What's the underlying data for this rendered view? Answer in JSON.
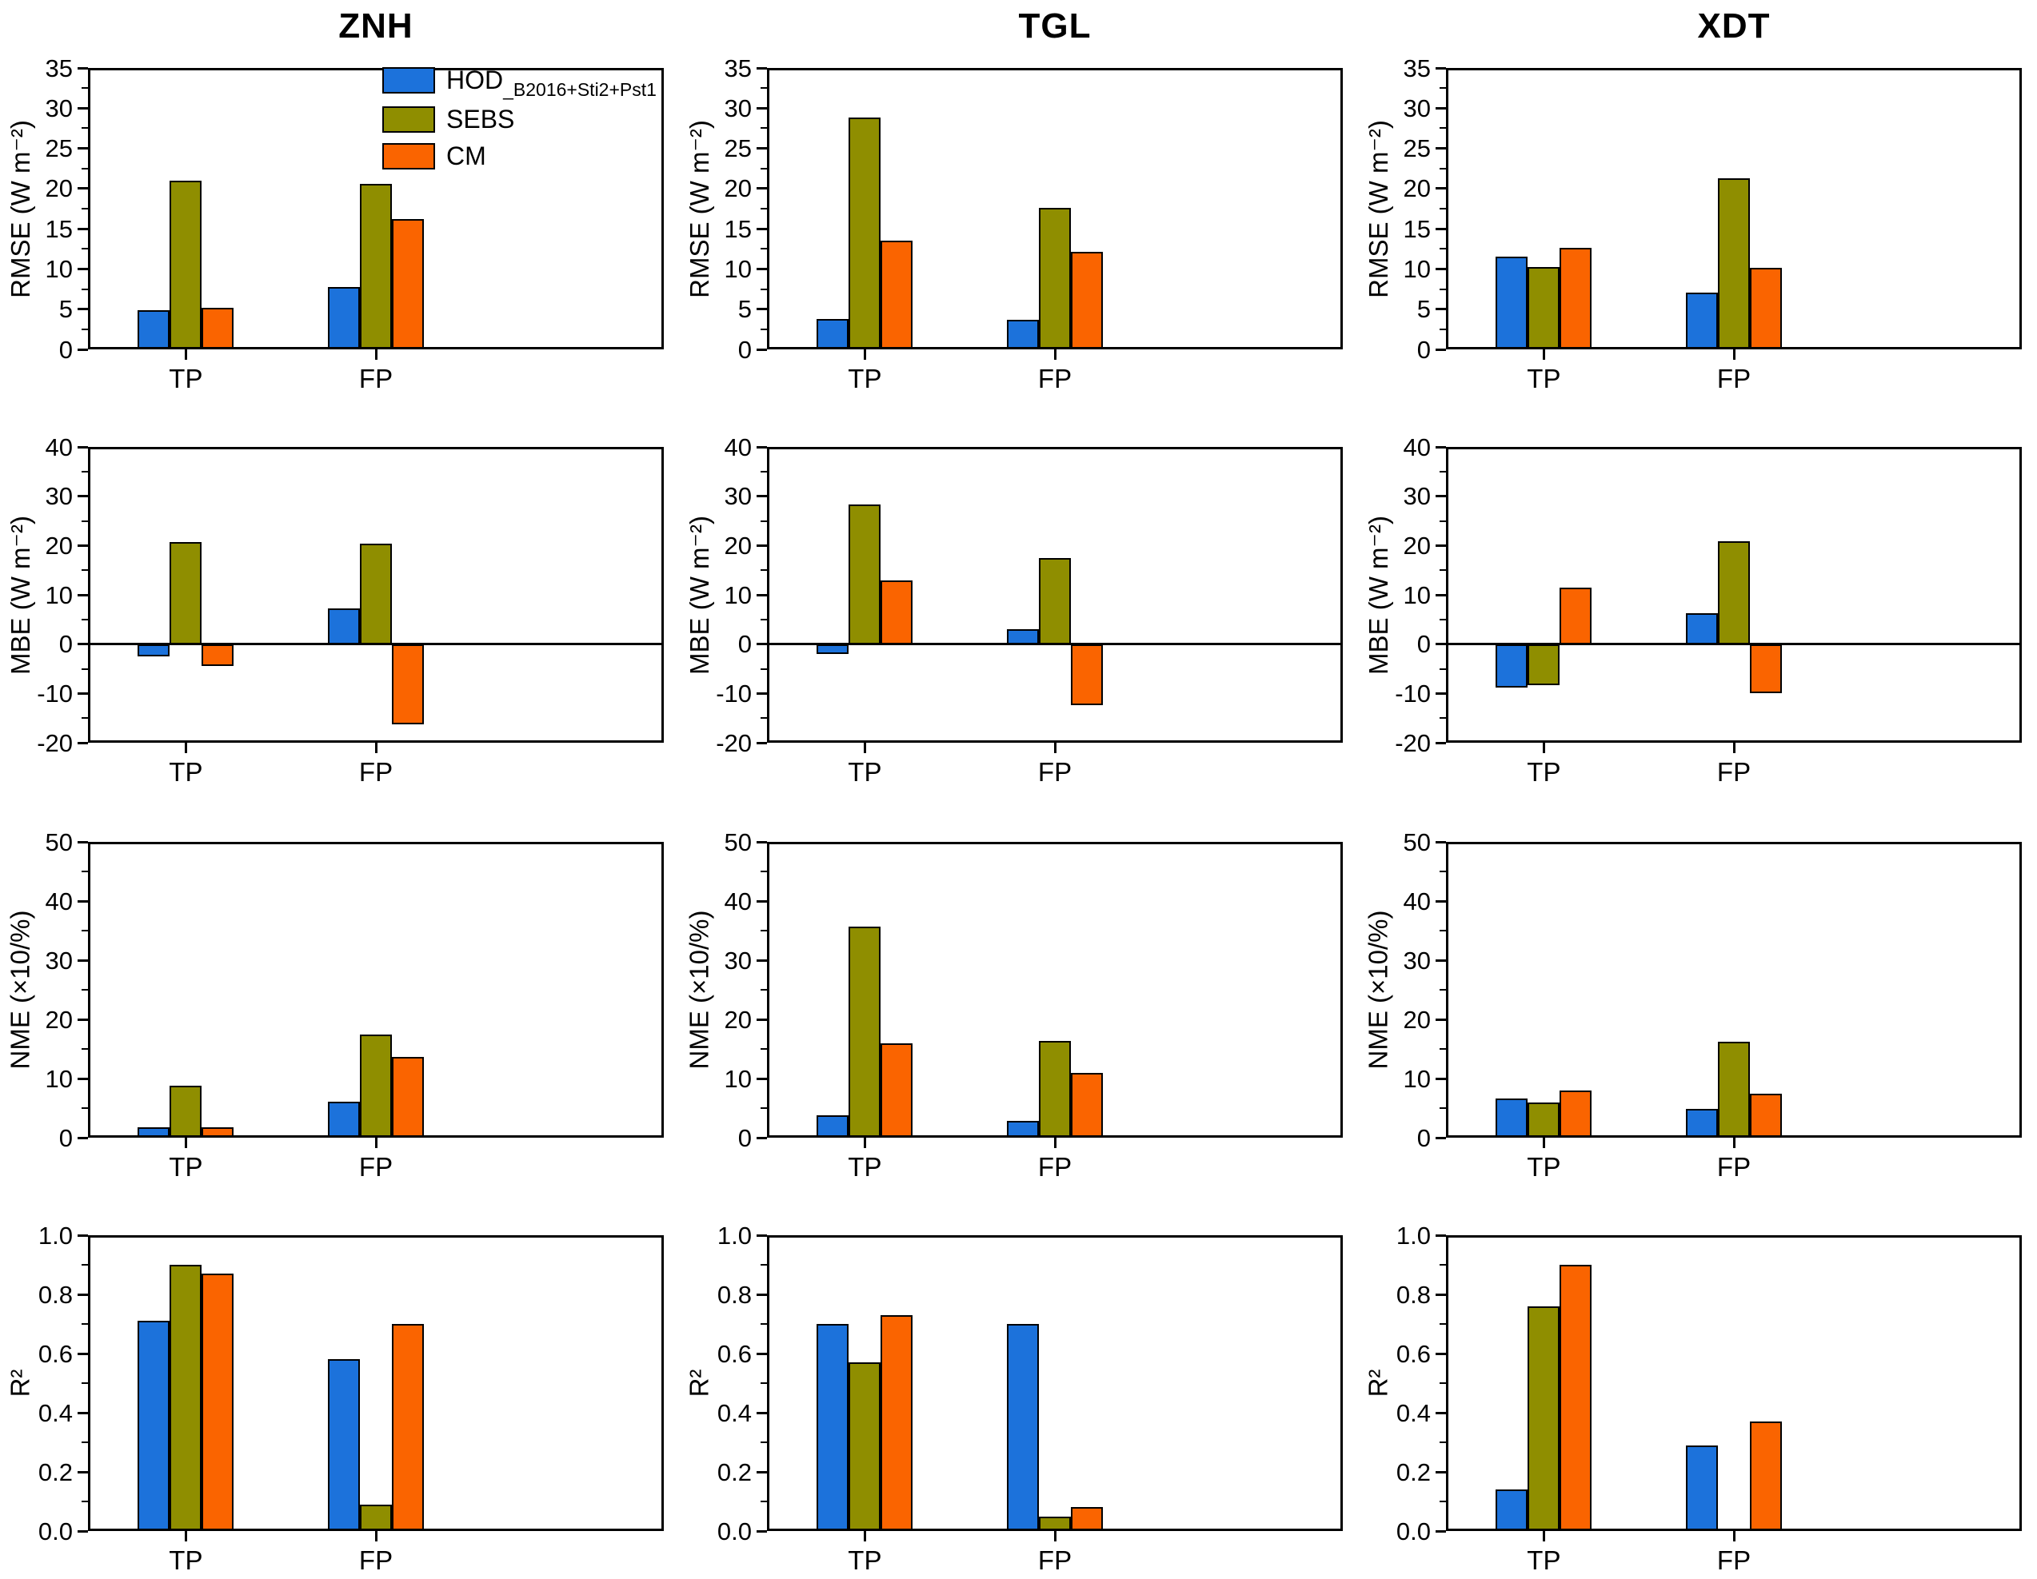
{
  "figure": {
    "background": "#ffffff",
    "columns": [
      "ZNH",
      "TGL",
      "XDT"
    ],
    "row_metrics": [
      "RMSE",
      "MBE",
      "NME",
      "R2"
    ],
    "categories": [
      "TP",
      "FP"
    ],
    "legend": {
      "items": [
        {
          "label": "HOD",
          "subscript": "_B2016+Sti2+Pst1",
          "color": "#1C72DB"
        },
        {
          "label": "SEBS",
          "subscript": "",
          "color": "#8F8E00"
        },
        {
          "label": "CM",
          "subscript": "",
          "color": "#FA6400"
        }
      ]
    },
    "series_colors": {
      "HOD": "#1C72DB",
      "SEBS": "#8F8E00",
      "CM": "#FA6400"
    }
  },
  "chart_data": [
    {
      "type": "bar",
      "site": "ZNH",
      "metric": "RMSE",
      "title": "ZNH",
      "ylabel": "RMSE (W m⁻²)",
      "ylim": [
        0,
        35
      ],
      "ytick_step": 5,
      "ytick_minor": 2.5,
      "ytick_decimals": 0,
      "grid": false,
      "legend_inside": true,
      "categories": [
        "TP",
        "FP"
      ],
      "series": [
        {
          "name": "HOD_B2016+Sti2+Pst1",
          "color": "#1C72DB",
          "values": [
            4.9,
            7.8
          ]
        },
        {
          "name": "SEBS",
          "color": "#8F8E00",
          "values": [
            21.0,
            20.6
          ]
        },
        {
          "name": "CM",
          "color": "#FA6400",
          "values": [
            5.2,
            16.2
          ]
        }
      ]
    },
    {
      "type": "bar",
      "site": "TGL",
      "metric": "RMSE",
      "title": "TGL",
      "ylabel": "RMSE (W m⁻²)",
      "ylim": [
        0,
        35
      ],
      "ytick_step": 5,
      "ytick_minor": 2.5,
      "ytick_decimals": 0,
      "grid": false,
      "legend_inside": false,
      "categories": [
        "TP",
        "FP"
      ],
      "series": [
        {
          "name": "HOD_B2016+Sti2+Pst1",
          "color": "#1C72DB",
          "values": [
            3.8,
            3.7
          ]
        },
        {
          "name": "SEBS",
          "color": "#8F8E00",
          "values": [
            28.8,
            17.6
          ]
        },
        {
          "name": "CM",
          "color": "#FA6400",
          "values": [
            13.5,
            12.1
          ]
        }
      ]
    },
    {
      "type": "bar",
      "site": "XDT",
      "metric": "RMSE",
      "title": "XDT",
      "ylabel": "RMSE (W m⁻²)",
      "ylim": [
        0,
        35
      ],
      "ytick_step": 5,
      "ytick_minor": 2.5,
      "ytick_decimals": 0,
      "grid": false,
      "legend_inside": false,
      "categories": [
        "TP",
        "FP"
      ],
      "series": [
        {
          "name": "HOD_B2016+Sti2+Pst1",
          "color": "#1C72DB",
          "values": [
            11.5,
            7.1
          ]
        },
        {
          "name": "SEBS",
          "color": "#8F8E00",
          "values": [
            10.2,
            21.3
          ]
        },
        {
          "name": "CM",
          "color": "#FA6400",
          "values": [
            12.6,
            10.1
          ]
        }
      ]
    },
    {
      "type": "bar",
      "site": "ZNH",
      "metric": "MBE",
      "title": "",
      "ylabel": "MBE (W m⁻²)",
      "ylim": [
        -20,
        40
      ],
      "ytick_step": 10,
      "ytick_minor": 5,
      "ytick_decimals": 0,
      "grid": false,
      "legend_inside": false,
      "categories": [
        "TP",
        "FP"
      ],
      "series": [
        {
          "name": "HOD_B2016+Sti2+Pst1",
          "color": "#1C72DB",
          "values": [
            -2.5,
            7.3
          ]
        },
        {
          "name": "SEBS",
          "color": "#8F8E00",
          "values": [
            20.7,
            20.4
          ]
        },
        {
          "name": "CM",
          "color": "#FA6400",
          "values": [
            -4.5,
            -16.3
          ]
        }
      ]
    },
    {
      "type": "bar",
      "site": "TGL",
      "metric": "MBE",
      "title": "",
      "ylabel": "MBE (W m⁻²)",
      "ylim": [
        -20,
        40
      ],
      "ytick_step": 10,
      "ytick_minor": 5,
      "ytick_decimals": 0,
      "grid": false,
      "legend_inside": false,
      "categories": [
        "TP",
        "FP"
      ],
      "series": [
        {
          "name": "HOD_B2016+Sti2+Pst1",
          "color": "#1C72DB",
          "values": [
            -2.0,
            3.1
          ]
        },
        {
          "name": "SEBS",
          "color": "#8F8E00",
          "values": [
            28.4,
            17.4
          ]
        },
        {
          "name": "CM",
          "color": "#FA6400",
          "values": [
            12.9,
            -12.3
          ]
        }
      ]
    },
    {
      "type": "bar",
      "site": "XDT",
      "metric": "MBE",
      "title": "",
      "ylabel": "MBE (W m⁻²)",
      "ylim": [
        -20,
        40
      ],
      "ytick_step": 10,
      "ytick_minor": 5,
      "ytick_decimals": 0,
      "grid": false,
      "legend_inside": false,
      "categories": [
        "TP",
        "FP"
      ],
      "series": [
        {
          "name": "HOD_B2016+Sti2+Pst1",
          "color": "#1C72DB",
          "values": [
            -8.8,
            6.3
          ]
        },
        {
          "name": "SEBS",
          "color": "#8F8E00",
          "values": [
            -8.3,
            20.9
          ]
        },
        {
          "name": "CM",
          "color": "#FA6400",
          "values": [
            11.5,
            -10.0
          ]
        }
      ]
    },
    {
      "type": "bar",
      "site": "ZNH",
      "metric": "NME",
      "title": "",
      "ylabel": "NME (×10/%)",
      "ylim": [
        0,
        50
      ],
      "ytick_step": 10,
      "ytick_minor": 5,
      "ytick_decimals": 0,
      "grid": false,
      "legend_inside": false,
      "categories": [
        "TP",
        "FP"
      ],
      "series": [
        {
          "name": "HOD_B2016+Sti2+Pst1",
          "color": "#1C72DB",
          "values": [
            1.7,
            6.1
          ]
        },
        {
          "name": "SEBS",
          "color": "#8F8E00",
          "values": [
            8.8,
            17.4
          ]
        },
        {
          "name": "CM",
          "color": "#FA6400",
          "values": [
            1.7,
            13.7
          ]
        }
      ]
    },
    {
      "type": "bar",
      "site": "TGL",
      "metric": "NME",
      "title": "",
      "ylabel": "NME (×10/%)",
      "ylim": [
        0,
        50
      ],
      "ytick_step": 10,
      "ytick_minor": 5,
      "ytick_decimals": 0,
      "grid": false,
      "legend_inside": false,
      "categories": [
        "TP",
        "FP"
      ],
      "series": [
        {
          "name": "HOD_B2016+Sti2+Pst1",
          "color": "#1C72DB",
          "values": [
            3.8,
            2.9
          ]
        },
        {
          "name": "SEBS",
          "color": "#8F8E00",
          "values": [
            35.7,
            16.3
          ]
        },
        {
          "name": "CM",
          "color": "#FA6400",
          "values": [
            15.9,
            11.0
          ]
        }
      ]
    },
    {
      "type": "bar",
      "site": "XDT",
      "metric": "NME",
      "title": "",
      "ylabel": "NME (×10/%)",
      "ylim": [
        0,
        50
      ],
      "ytick_step": 10,
      "ytick_minor": 5,
      "ytick_decimals": 0,
      "grid": false,
      "legend_inside": false,
      "categories": [
        "TP",
        "FP"
      ],
      "series": [
        {
          "name": "HOD_B2016+Sti2+Pst1",
          "color": "#1C72DB",
          "values": [
            6.6,
            4.9
          ]
        },
        {
          "name": "SEBS",
          "color": "#8F8E00",
          "values": [
            5.9,
            16.2
          ]
        },
        {
          "name": "CM",
          "color": "#FA6400",
          "values": [
            8.0,
            7.5
          ]
        }
      ]
    },
    {
      "type": "bar",
      "site": "ZNH",
      "metric": "R2",
      "title": "",
      "ylabel": "R²",
      "ylim": [
        0,
        1
      ],
      "ytick_step": 0.2,
      "ytick_minor": 0.1,
      "ytick_decimals": 1,
      "grid": false,
      "legend_inside": false,
      "categories": [
        "TP",
        "FP"
      ],
      "series": [
        {
          "name": "HOD_B2016+Sti2+Pst1",
          "color": "#1C72DB",
          "values": [
            0.71,
            0.58
          ]
        },
        {
          "name": "SEBS",
          "color": "#8F8E00",
          "values": [
            0.9,
            0.09
          ]
        },
        {
          "name": "CM",
          "color": "#FA6400",
          "values": [
            0.87,
            0.7
          ]
        }
      ]
    },
    {
      "type": "bar",
      "site": "TGL",
      "metric": "R2",
      "title": "",
      "ylabel": "R²",
      "ylim": [
        0,
        1
      ],
      "ytick_step": 0.2,
      "ytick_minor": 0.1,
      "ytick_decimals": 1,
      "grid": false,
      "legend_inside": false,
      "categories": [
        "TP",
        "FP"
      ],
      "series": [
        {
          "name": "HOD_B2016+Sti2+Pst1",
          "color": "#1C72DB",
          "values": [
            0.7,
            0.7
          ]
        },
        {
          "name": "SEBS",
          "color": "#8F8E00",
          "values": [
            0.57,
            0.05
          ]
        },
        {
          "name": "CM",
          "color": "#FA6400",
          "values": [
            0.73,
            0.08
          ]
        }
      ]
    },
    {
      "type": "bar",
      "site": "XDT",
      "metric": "R2",
      "title": "",
      "ylabel": "R²",
      "ylim": [
        0,
        1
      ],
      "ytick_step": 0.2,
      "ytick_minor": 0.1,
      "ytick_decimals": 1,
      "grid": false,
      "legend_inside": false,
      "categories": [
        "TP",
        "FP"
      ],
      "series": [
        {
          "name": "HOD_B2016+Sti2+Pst1",
          "color": "#1C72DB",
          "values": [
            0.14,
            0.29
          ]
        },
        {
          "name": "SEBS",
          "color": "#8F8E00",
          "values": [
            0.76,
            0.0
          ]
        },
        {
          "name": "CM",
          "color": "#FA6400",
          "values": [
            0.9,
            0.37
          ]
        }
      ]
    }
  ]
}
